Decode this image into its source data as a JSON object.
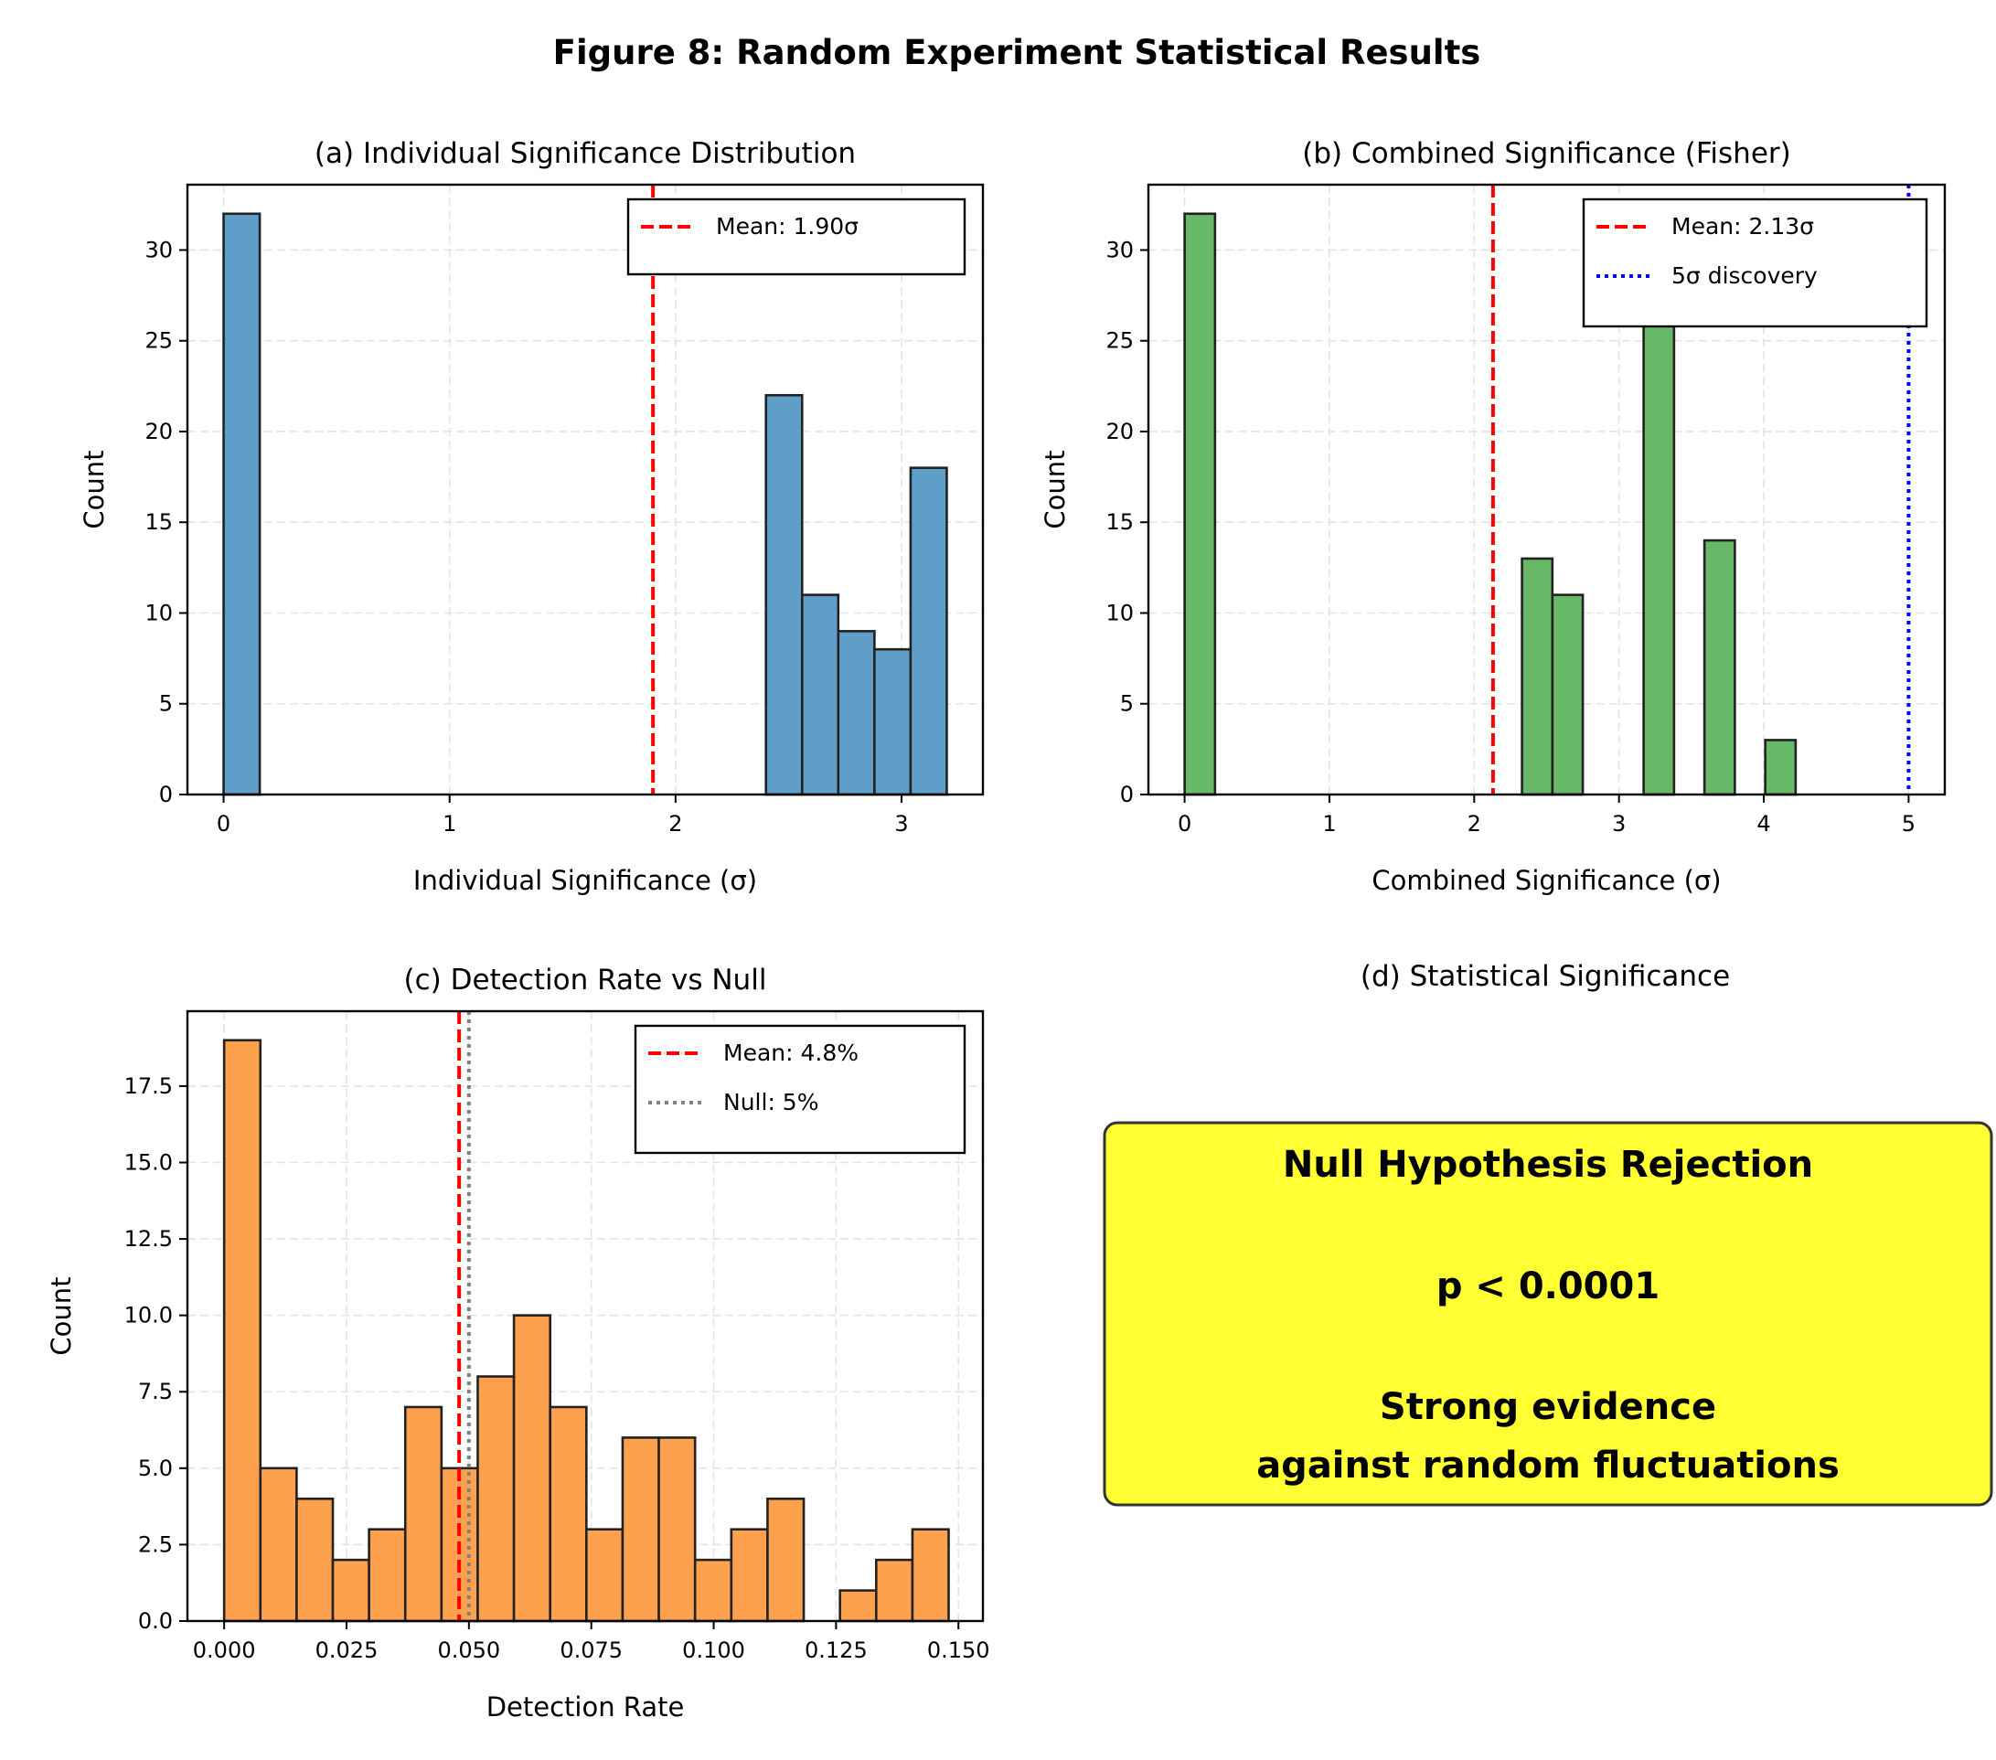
{
  "figure_title": "Figure 8: Random Experiment Statistical Results",
  "colors": {
    "blue_bars": "#5f9ec9",
    "green_bars": "#67b867",
    "orange_bars": "#fda14f",
    "bar_edge": "#222222",
    "mean_line": "#ff0000",
    "discovery_line": "#0000ff",
    "null_line": "#808080",
    "box_fill": "#ffff33",
    "box_edge": "#333333"
  },
  "chart_data": [
    {
      "id": "a",
      "type": "bar",
      "title": "(a) Individual Significance Distribution",
      "xlabel": "Individual Significance (σ)",
      "ylabel": "Count",
      "xlim": [
        -0.16,
        3.36
      ],
      "ylim": [
        0,
        33.6
      ],
      "xticks": [
        0,
        1,
        2,
        3
      ],
      "xticklabels": [
        "0",
        "1",
        "2",
        "3"
      ],
      "yticks": [
        0,
        5,
        10,
        15,
        20,
        25,
        30
      ],
      "yticklabels": [
        "0",
        "5",
        "10",
        "15",
        "20",
        "25",
        "30"
      ],
      "grid": true,
      "bar_color": "#5f9ec9",
      "bins": [
        {
          "start": 0.0,
          "end": 0.16,
          "count": 32
        },
        {
          "start": 2.4,
          "end": 2.56,
          "count": 22
        },
        {
          "start": 2.56,
          "end": 2.72,
          "count": 11
        },
        {
          "start": 2.72,
          "end": 2.88,
          "count": 9
        },
        {
          "start": 2.88,
          "end": 3.04,
          "count": 8
        },
        {
          "start": 3.04,
          "end": 3.2,
          "count": 18
        }
      ],
      "lines": [
        {
          "x": 1.9,
          "style": "dashed",
          "color": "#ff0000",
          "label": "Mean: 1.90σ"
        }
      ],
      "legend_position": "top-right"
    },
    {
      "id": "b",
      "type": "bar",
      "title": "(b) Combined Significance (Fisher)",
      "xlabel": "Combined Significance (σ)",
      "ylabel": "Count",
      "xlim": [
        -0.25,
        5.25
      ],
      "ylim": [
        0,
        33.6
      ],
      "xticks": [
        0,
        1,
        2,
        3,
        4,
        5
      ],
      "xticklabels": [
        "0",
        "1",
        "2",
        "3",
        "4",
        "5"
      ],
      "yticks": [
        0,
        5,
        10,
        15,
        20,
        25,
        30
      ],
      "yticklabels": [
        "0",
        "5",
        "10",
        "15",
        "20",
        "25",
        "30"
      ],
      "grid": true,
      "bar_color": "#67b867",
      "bins": [
        {
          "start": 0.0,
          "end": 0.21,
          "count": 32
        },
        {
          "start": 2.33,
          "end": 2.54,
          "count": 13
        },
        {
          "start": 2.54,
          "end": 2.75,
          "count": 11
        },
        {
          "start": 3.17,
          "end": 3.38,
          "count": 27
        },
        {
          "start": 3.59,
          "end": 3.8,
          "count": 14
        },
        {
          "start": 4.01,
          "end": 4.22,
          "count": 3
        }
      ],
      "lines": [
        {
          "x": 2.13,
          "style": "dashed",
          "color": "#ff0000",
          "label": "Mean: 2.13σ"
        },
        {
          "x": 5.0,
          "style": "dotted",
          "color": "#0000ff",
          "label": "5σ discovery"
        }
      ],
      "legend_position": "top-right"
    },
    {
      "id": "c",
      "type": "bar",
      "title": "(c) Detection Rate vs Null",
      "xlabel": "Detection Rate",
      "ylabel": "Count",
      "xlim": [
        -0.0075,
        0.155
      ],
      "ylim": [
        0,
        19.95
      ],
      "xticks": [
        0.0,
        0.025,
        0.05,
        0.075,
        0.1,
        0.125,
        0.15
      ],
      "xticklabels": [
        "0.000",
        "0.025",
        "0.050",
        "0.075",
        "0.100",
        "0.125",
        "0.150"
      ],
      "yticks": [
        0,
        2.5,
        5,
        7.5,
        10,
        12.5,
        15,
        17.5
      ],
      "yticklabels": [
        "0.0",
        "2.5",
        "5.0",
        "7.5",
        "10.0",
        "12.5",
        "15.0",
        "17.5"
      ],
      "grid": true,
      "bar_color": "#fda14f",
      "bin_start": 0.0,
      "bin_width": 0.0074,
      "counts": [
        19,
        5,
        4,
        2,
        3,
        7,
        5,
        8,
        10,
        7,
        3,
        6,
        6,
        2,
        3,
        4,
        0,
        1,
        2,
        3
      ],
      "lines": [
        {
          "x": 0.048,
          "style": "dashed",
          "color": "#ff0000",
          "label": "Mean: 4.8%"
        },
        {
          "x": 0.05,
          "style": "dotted",
          "color": "#808080",
          "label": "Null: 5%"
        }
      ],
      "legend_position": "top-right"
    }
  ],
  "panel_d": {
    "title": "(d) Statistical Significance",
    "box_lines": [
      "Null Hypothesis Rejection",
      "",
      "p < 0.0001",
      "",
      "Strong evidence",
      "against random fluctuations"
    ]
  }
}
